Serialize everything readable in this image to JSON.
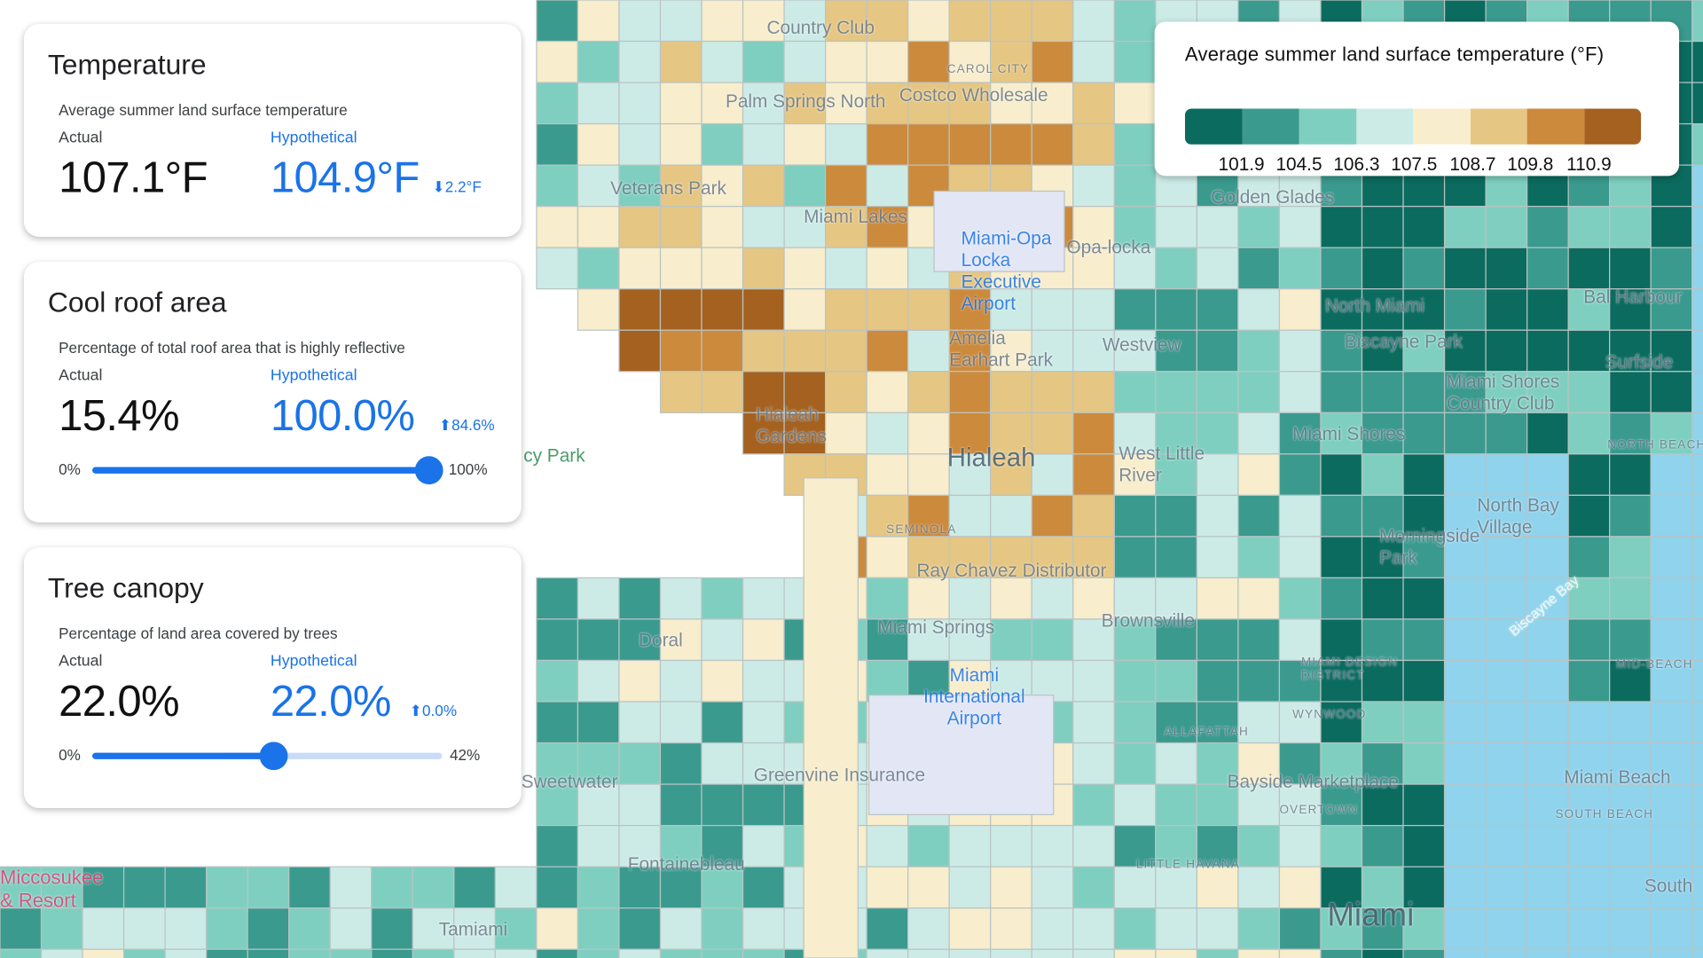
{
  "temperature": {
    "title": "Temperature",
    "description": "Average summer land surface temperature",
    "actual_label": "Actual",
    "hypothetical_label": "Hypothetical",
    "actual_value": "107.1°F",
    "hypothetical_value": "104.9°F",
    "delta": "2.2°F",
    "delta_direction": "down"
  },
  "cool_roof": {
    "title": "Cool roof area",
    "description": "Percentage of total roof area that is highly reflective",
    "actual_label": "Actual",
    "hypothetical_label": "Hypothetical",
    "actual_value": "15.4%",
    "hypothetical_value": "100.0%",
    "delta": "84.6%",
    "delta_direction": "up",
    "slider_min": "0%",
    "slider_max": "100%",
    "slider_level_percent": 100
  },
  "tree_canopy": {
    "title": "Tree canopy",
    "description": "Percentage of land area covered by trees",
    "actual_label": "Actual",
    "hypothetical_label": "Hypothetical",
    "actual_value": "22.0%",
    "hypothetical_value": "22.0%",
    "delta": "0.0%",
    "delta_direction": "up",
    "slider_min": "0%",
    "slider_max": "42%",
    "slider_level_percent": 52
  },
  "legend": {
    "title": "Average summer land surface temperature (°F)",
    "colors": [
      "#0b6b5f",
      "#3a9a8e",
      "#7fcfc0",
      "#cdebe6",
      "#f8edcc",
      "#e6c683",
      "#cc8a3c",
      "#a4611f"
    ],
    "ticks": [
      "101.9",
      "104.5",
      "106.3",
      "107.5",
      "108.7",
      "109.8",
      "110.9"
    ]
  },
  "map": {
    "water_color": "#8fd3ec",
    "labels": [
      "Country Club",
      "Palm Springs North",
      "Costco Wholesale",
      "Veterans Park",
      "Miami Lakes",
      "Miami-Opa Locka Executive Airport",
      "Opa-locka",
      "Golden Glades",
      "North Miami",
      "Biscayne Park",
      "Miami Shores Country Club",
      "Miami Shores",
      "Bal Harbour",
      "Surfside",
      "Hialeah Gardens",
      "Hialeah",
      "West Little River",
      "Westview",
      "Amelia Earhart Park",
      "North Bay Village",
      "Morningside Park",
      "Biscayne Bay",
      "Miami Springs",
      "Brownsville",
      "Miami International Airport",
      "Doral",
      "Sweetwater",
      "Greenvine Insurance",
      "Bayside Marketplace",
      "Miami Beach",
      "South",
      "Fontainebleau",
      "Tamiami",
      "Miccosukee & Resort",
      "Miami",
      "ALLAPATTAH",
      "LITTLE HAVANA",
      "OVERTOWN",
      "SOUTH BEACH",
      "MID-BEACH",
      "NORTH BEACH",
      "CAROL CITY",
      "SEMINOLA",
      "MIAMI DESIGN DISTRICT",
      "WYNWOOD",
      "Ray Chavez Distributor",
      "cy Park"
    ]
  }
}
